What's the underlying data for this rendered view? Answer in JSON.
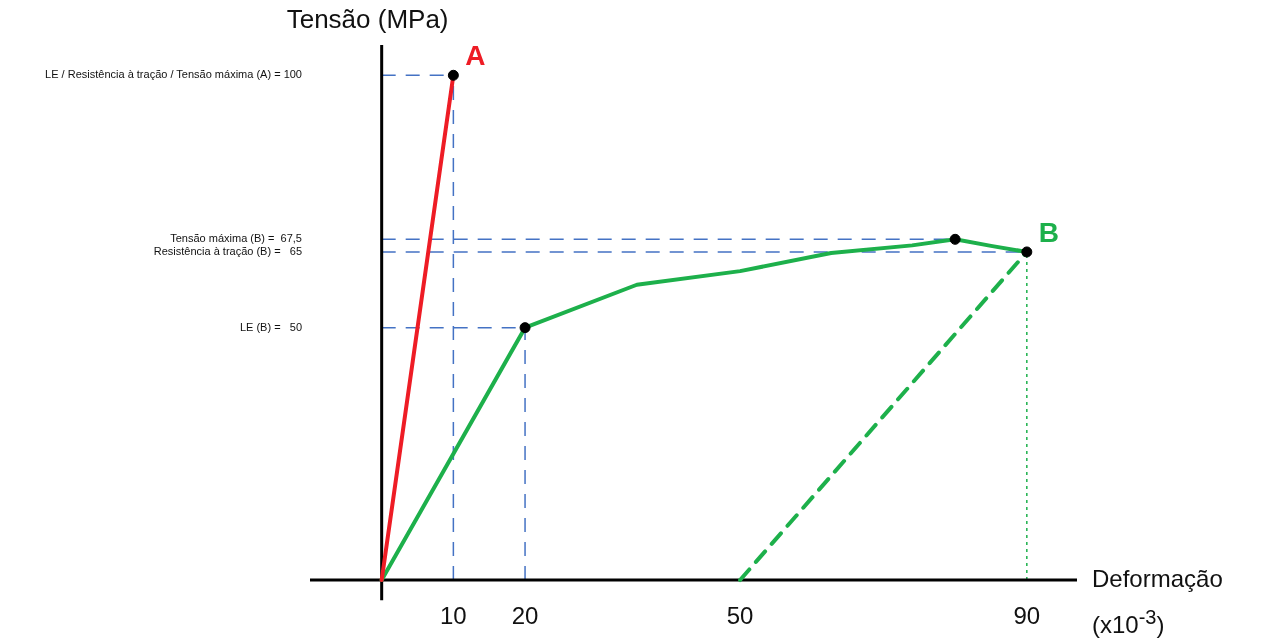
{
  "chart_data": {
    "type": "line",
    "xlabel": "Deformação (x10$^{-3}$)",
    "ylabel": "Tensão (MPa)",
    "xlim": [
      -10,
      97
    ],
    "ylim": [
      -4,
      106
    ],
    "xticks": [
      10,
      20,
      50,
      90
    ],
    "yticks": [
      {
        "value": 50,
        "label": "LE (B) =   50"
      },
      {
        "value": 65,
        "label": "Resistência à tração (B) =   65"
      },
      {
        "value": 67.5,
        "label": "Tensão máxima (B) =  67,5"
      },
      {
        "value": 100,
        "label": "LE / Resistência à tração / Tensão máxima (A) = 100"
      }
    ],
    "grid": false,
    "legend": false,
    "marker": "none",
    "line_style": "solid",
    "series": [
      {
        "name": "A",
        "color": "#ee1c25",
        "x": [
          0,
          10
        ],
        "values": [
          0,
          100
        ]
      },
      {
        "name": "B",
        "color": "#1db04b",
        "x": [
          0,
          20,
          35.6,
          50,
          62.7,
          74,
          80,
          85,
          90
        ],
        "values": [
          0,
          50,
          58.5,
          61.2,
          64.8,
          66.3,
          67.5,
          66.2,
          65
        ]
      },
      {
        "color": "#1db04b",
        "line_style": "dashed",
        "x": [
          50,
          90
        ],
        "values": [
          0,
          65
        ]
      },
      {
        "type": "scatter",
        "marker": "circle",
        "color": "#000000",
        "x": [
          10,
          20,
          80,
          90
        ],
        "values": [
          100,
          50,
          67.5,
          65
        ]
      }
    ],
    "ref_lines": [
      {
        "axis": "y",
        "value": 100,
        "color": "#4472c4",
        "line_style": "dashed"
      },
      {
        "axis": "y",
        "value": 67.5,
        "color": "#4472c4",
        "line_style": "dashed"
      },
      {
        "axis": "y",
        "value": 65,
        "color": "#4472c4",
        "line_style": "dashed"
      },
      {
        "axis": "y",
        "value": 50,
        "color": "#4472c4",
        "line_style": "dashed"
      },
      {
        "axis": "x",
        "value": 10,
        "color": "#4472c4",
        "line_style": "dashed"
      },
      {
        "axis": "x",
        "value": 20,
        "color": "#4472c4",
        "line_style": "dashed"
      },
      {
        "axis": "x",
        "value": 90,
        "color": "#1db04b",
        "line_style": "dotted"
      }
    ]
  }
}
